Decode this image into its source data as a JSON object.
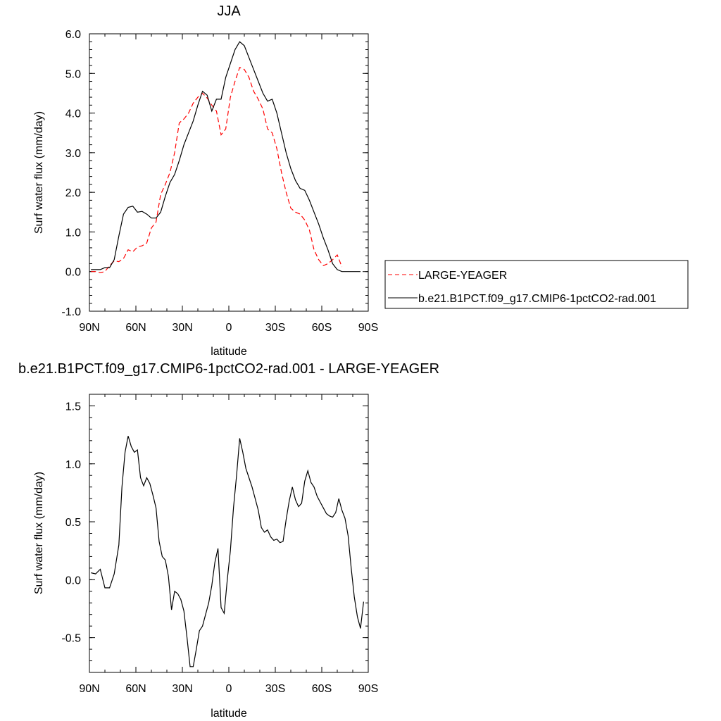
{
  "chart_data": [
    {
      "type": "line",
      "title": "JJA",
      "xlabel": "latitude",
      "ylabel": "Surf water flux (mm/day)",
      "xlim": [
        90,
        -90
      ],
      "ylim": [
        -1.0,
        6.0
      ],
      "x_ticks": [
        {
          "value": 90,
          "label": "90N"
        },
        {
          "value": 60,
          "label": "60N"
        },
        {
          "value": 30,
          "label": "30N"
        },
        {
          "value": 0,
          "label": "0"
        },
        {
          "value": -30,
          "label": "30S"
        },
        {
          "value": -60,
          "label": "60S"
        },
        {
          "value": -90,
          "label": "90S"
        }
      ],
      "y_ticks": [
        {
          "value": -1.0,
          "label": "-1.0"
        },
        {
          "value": 0.0,
          "label": "0.0"
        },
        {
          "value": 1.0,
          "label": "1.0"
        },
        {
          "value": 2.0,
          "label": "2.0"
        },
        {
          "value": 3.0,
          "label": "3.0"
        },
        {
          "value": 4.0,
          "label": "4.0"
        },
        {
          "value": 5.0,
          "label": "5.0"
        },
        {
          "value": 6.0,
          "label": "6.0"
        }
      ],
      "legend_position": "right",
      "series": [
        {
          "name": "LARGE-YEAGER",
          "color": "#ff0000",
          "dash": "dashed",
          "x": [
            89,
            86,
            83,
            80,
            77,
            74,
            71,
            68,
            65,
            62,
            59,
            56,
            53,
            50,
            47,
            44,
            41,
            38,
            35,
            32,
            29,
            26,
            23,
            20,
            17,
            14,
            11,
            8,
            5,
            2,
            -1,
            -4,
            -7,
            -10,
            -13,
            -16,
            -19,
            -22,
            -25,
            -28,
            -31,
            -34,
            -37,
            -40,
            -43,
            -46,
            -49,
            -52,
            -55,
            -58,
            -61,
            -64,
            -67,
            -70,
            -73,
            -76,
            -79,
            -80
          ],
          "y": [
            0.0,
            0.0,
            -0.03,
            0.0,
            0.15,
            0.27,
            0.25,
            0.33,
            0.55,
            0.5,
            0.62,
            0.65,
            0.72,
            1.1,
            1.25,
            1.95,
            2.2,
            2.5,
            3.0,
            3.75,
            3.85,
            4.0,
            4.25,
            4.4,
            4.5,
            4.38,
            4.2,
            4.05,
            3.45,
            3.6,
            4.4,
            4.8,
            5.15,
            5.1,
            4.9,
            4.55,
            4.35,
            4.1,
            3.6,
            3.5,
            3.1,
            2.5,
            2.0,
            1.6,
            1.5,
            1.45,
            1.3,
            1.05,
            0.55,
            0.3,
            0.15,
            0.2,
            0.3,
            0.42,
            0.12,
            null,
            null,
            null
          ]
        },
        {
          "name": "b.e21.B1PCT.f09_g17.CMIP6-1pctCO2-rad.001",
          "color": "#000000",
          "dash": "solid",
          "x": [
            89,
            86,
            83,
            80,
            77,
            74,
            71,
            68,
            65,
            62,
            59,
            56,
            53,
            50,
            47,
            44,
            41,
            38,
            35,
            32,
            29,
            26,
            23,
            20,
            17,
            14,
            11,
            8,
            5,
            2,
            -1,
            -4,
            -7,
            -10,
            -13,
            -16,
            -19,
            -22,
            -25,
            -28,
            -31,
            -34,
            -37,
            -40,
            -43,
            -46,
            -49,
            -52,
            -55,
            -58,
            -61,
            -64,
            -67,
            -70,
            -73,
            -76,
            -79,
            -82,
            -85,
            -88
          ],
          "y": [
            0.05,
            0.05,
            0.05,
            0.1,
            0.1,
            0.3,
            0.9,
            1.45,
            1.62,
            1.65,
            1.5,
            1.52,
            1.45,
            1.35,
            1.35,
            1.5,
            1.9,
            2.25,
            2.45,
            2.8,
            3.2,
            3.5,
            3.8,
            4.2,
            4.55,
            4.45,
            4.05,
            4.35,
            4.35,
            4.9,
            5.25,
            5.6,
            5.8,
            5.7,
            5.4,
            5.1,
            4.8,
            4.5,
            4.3,
            4.35,
            4.0,
            3.5,
            3.0,
            2.6,
            2.3,
            2.1,
            2.05,
            1.8,
            1.5,
            1.2,
            0.85,
            0.55,
            0.2,
            0.05,
            0.0,
            0.0,
            0.0,
            0.0,
            0.0,
            null
          ]
        }
      ]
    },
    {
      "type": "line",
      "title": "b.e21.B1PCT.f09_g17.CMIP6-1pctCO2-rad.001 - LARGE-YEAGER",
      "xlabel": "latitude",
      "ylabel": "Surf water flux (mm/day)",
      "xlim": [
        90,
        -90
      ],
      "ylim": [
        -0.8,
        1.6
      ],
      "x_ticks": [
        {
          "value": 90,
          "label": "90N"
        },
        {
          "value": 60,
          "label": "60N"
        },
        {
          "value": 30,
          "label": "30N"
        },
        {
          "value": 0,
          "label": "0"
        },
        {
          "value": -30,
          "label": "30S"
        },
        {
          "value": -60,
          "label": "60S"
        },
        {
          "value": -90,
          "label": "90S"
        }
      ],
      "y_ticks": [
        {
          "value": -0.5,
          "label": "-0.5"
        },
        {
          "value": 0.0,
          "label": "0.0"
        },
        {
          "value": 0.5,
          "label": "0.5"
        },
        {
          "value": 1.0,
          "label": "1.0"
        },
        {
          "value": 1.5,
          "label": "1.5"
        }
      ],
      "series": [
        {
          "color": "#000000",
          "dash": "solid",
          "x": [
            89,
            86,
            83,
            80,
            77,
            74,
            71,
            69,
            67,
            65,
            63,
            61,
            59,
            57,
            55,
            53,
            51,
            49,
            47,
            45,
            43,
            41,
            39,
            37,
            35,
            33,
            31,
            29,
            27,
            25,
            23,
            21,
            19,
            17,
            15,
            13,
            11,
            9,
            7,
            5,
            3,
            1,
            -1,
            -3,
            -5,
            -7,
            -9,
            -11,
            -13,
            -15,
            -17,
            -19,
            -21,
            -23,
            -25,
            -27,
            -29,
            -31,
            -33,
            -35,
            -37,
            -39,
            -41,
            -43,
            -45,
            -47,
            -49,
            -51,
            -53,
            -55,
            -57,
            -59,
            -61,
            -63,
            -65,
            -67,
            -69,
            -71,
            -73,
            -75,
            -77,
            -79
          ],
          "y": [
            0.06,
            0.05,
            0.09,
            -0.07,
            -0.07,
            0.05,
            0.3,
            0.8,
            1.1,
            1.24,
            1.15,
            1.1,
            1.12,
            0.88,
            0.81,
            0.88,
            0.83,
            0.73,
            0.62,
            0.33,
            0.2,
            0.17,
            0.03,
            -0.26,
            -0.1,
            -0.12,
            -0.17,
            -0.27,
            -0.5,
            -0.75,
            -0.75,
            -0.6,
            -0.44,
            -0.4,
            -0.3,
            -0.2,
            -0.05,
            0.15,
            0.27,
            -0.24,
            -0.29,
            0.0,
            0.25,
            0.62,
            0.9,
            1.22,
            1.1,
            0.96,
            0.88,
            0.8,
            0.7,
            0.6,
            0.45,
            0.41,
            0.43,
            0.37,
            0.34,
            0.35,
            0.32,
            0.33,
            0.52,
            0.68,
            0.8,
            0.69,
            0.63,
            0.66,
            0.85,
            0.94,
            0.84,
            0.8,
            0.72,
            0.67,
            0.62,
            0.57,
            0.55,
            0.54,
            0.58,
            0.7,
            0.6,
            0.53,
            0.38,
            0.1
          ]
        }
      ]
    }
  ],
  "extra_tail": [
    -0.15,
    -0.32,
    -0.42,
    -0.19
  ]
}
